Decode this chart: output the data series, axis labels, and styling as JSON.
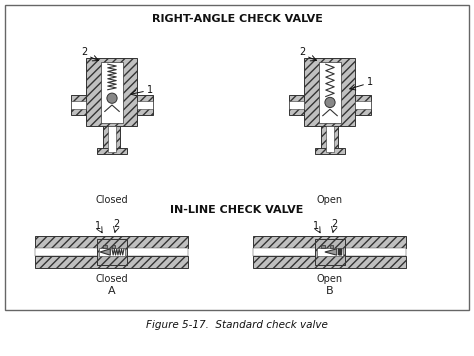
{
  "title_top": "RIGHT-ANGLE CHECK VALVE",
  "title_mid": "IN-LINE CHECK VALVE",
  "caption": "Figure 5-17.  Standard check valve",
  "label_closed_top": "Closed",
  "label_open_top": "Open",
  "label_closed_bot": "Closed",
  "label_open_bot": "Open",
  "label_A": "A",
  "label_B": "B",
  "border_color": "#888888",
  "hatch_color": "#555555",
  "white_color": "#ffffff",
  "body_color": "#c8c8c8",
  "dark_color": "#333333",
  "inner_color": "#e8e8e8",
  "figsize": [
    4.74,
    3.56
  ],
  "dpi": 100
}
